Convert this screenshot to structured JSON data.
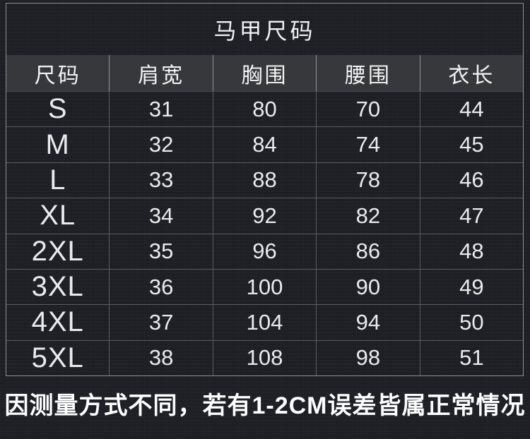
{
  "title": "马甲尺码",
  "footnote": "因测量方式不同，若有1-2CM误差皆属正常情况",
  "colors": {
    "background": "#1e2025",
    "header_row_background": "#36383c",
    "grid_line": "#8c8e91",
    "text": "#f3f4f5"
  },
  "chart_data": {
    "type": "table",
    "title": "马甲尺码",
    "columns": [
      "尺码",
      "肩宽",
      "胸围",
      "腰围",
      "衣长"
    ],
    "rows": [
      [
        "S",
        31,
        80,
        70,
        44
      ],
      [
        "M",
        32,
        84,
        74,
        45
      ],
      [
        "L",
        33,
        88,
        78,
        46
      ],
      [
        "XL",
        34,
        92,
        82,
        47
      ],
      [
        "2XL",
        35,
        96,
        86,
        48
      ],
      [
        "3XL",
        36,
        100,
        90,
        49
      ],
      [
        "4XL",
        37,
        104,
        94,
        50
      ],
      [
        "5XL",
        38,
        108,
        98,
        51
      ]
    ],
    "annotation": "因测量方式不同，若有1-2CM误差皆属正常情况",
    "layout": {
      "grid": true,
      "header_shaded": true,
      "title_position": "top-center"
    }
  }
}
